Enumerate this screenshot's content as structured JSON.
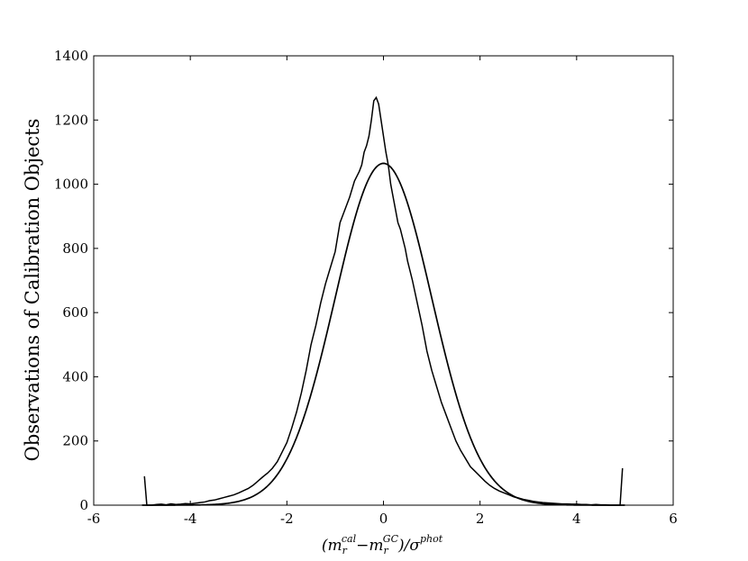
{
  "chart_data": {
    "type": "line",
    "title": "",
    "xlabel": "(m_r^cal−m_r^GC)/σ^phot",
    "xlabel_parts": {
      "open": "(m",
      "sub1": "r",
      "sup1": "cal",
      "minus": "−m",
      "sub2": "r",
      "sup2": "GC",
      "close": ")/σ",
      "sup3": "phot"
    },
    "ylabel": "Observations of Calibration Objects",
    "xlim": [
      -6,
      6
    ],
    "ylim": [
      0,
      1400
    ],
    "xticks": [
      -6,
      -4,
      -2,
      0,
      2,
      4,
      6
    ],
    "xtick_labels": [
      "-6",
      "-4",
      "-2",
      "0",
      "2",
      "4",
      "6"
    ],
    "yticks": [
      0,
      200,
      400,
      600,
      800,
      1000,
      1200,
      1400
    ],
    "ytick_labels": [
      "0",
      "200",
      "400",
      "600",
      "800",
      "1000",
      "1200",
      "1400"
    ],
    "grid": false,
    "legend": "none",
    "series": [
      {
        "kind": "histogram",
        "x": [
          -4.95,
          -4.9,
          -4.8,
          -4.7,
          -4.6,
          -4.5,
          -4.4,
          -4.3,
          -4.2,
          -4.1,
          -4.0,
          -3.9,
          -3.8,
          -3.7,
          -3.6,
          -3.5,
          -3.4,
          -3.3,
          -3.2,
          -3.1,
          -3.0,
          -2.9,
          -2.8,
          -2.7,
          -2.6,
          -2.5,
          -2.4,
          -2.3,
          -2.2,
          -2.1,
          -2.0,
          -1.9,
          -1.8,
          -1.7,
          -1.6,
          -1.5,
          -1.4,
          -1.3,
          -1.2,
          -1.1,
          -1.0,
          -0.9,
          -0.8,
          -0.7,
          -0.6,
          -0.5,
          -0.45,
          -0.4,
          -0.35,
          -0.3,
          -0.25,
          -0.2,
          -0.15,
          -0.1,
          -0.05,
          0.0,
          0.05,
          0.1,
          0.15,
          0.2,
          0.25,
          0.3,
          0.35,
          0.4,
          0.45,
          0.5,
          0.6,
          0.7,
          0.8,
          0.9,
          1.0,
          1.1,
          1.2,
          1.3,
          1.4,
          1.5,
          1.6,
          1.7,
          1.8,
          1.9,
          2.0,
          2.1,
          2.2,
          2.3,
          2.4,
          2.5,
          2.6,
          2.7,
          2.8,
          2.9,
          3.0,
          3.1,
          3.2,
          3.3,
          3.4,
          3.5,
          3.6,
          3.7,
          3.8,
          3.9,
          4.0,
          4.1,
          4.2,
          4.3,
          4.4,
          4.5,
          4.6,
          4.7,
          4.8,
          4.9,
          4.95
        ],
        "y": [
          90,
          0,
          0,
          2,
          3,
          1,
          4,
          2,
          3,
          5,
          4,
          6,
          8,
          10,
          14,
          16,
          20,
          24,
          28,
          32,
          38,
          45,
          52,
          62,
          75,
          88,
          100,
          115,
          135,
          165,
          195,
          240,
          290,
          350,
          420,
          500,
          560,
          630,
          690,
          740,
          790,
          880,
          920,
          960,
          1010,
          1040,
          1060,
          1100,
          1120,
          1150,
          1200,
          1260,
          1270,
          1250,
          1200,
          1150,
          1100,
          1060,
          1000,
          960,
          920,
          880,
          860,
          830,
          800,
          760,
          700,
          630,
          560,
          480,
          420,
          370,
          320,
          280,
          240,
          200,
          170,
          145,
          120,
          105,
          90,
          75,
          62,
          52,
          44,
          38,
          32,
          26,
          22,
          18,
          15,
          12,
          10,
          8,
          7,
          6,
          5,
          4,
          4,
          3,
          3,
          2,
          2,
          1,
          2,
          1,
          1,
          0,
          0,
          0,
          115
        ]
      },
      {
        "kind": "gaussian-fit",
        "amplitude": 1065,
        "mean": 0,
        "sigma": 1
      }
    ]
  }
}
